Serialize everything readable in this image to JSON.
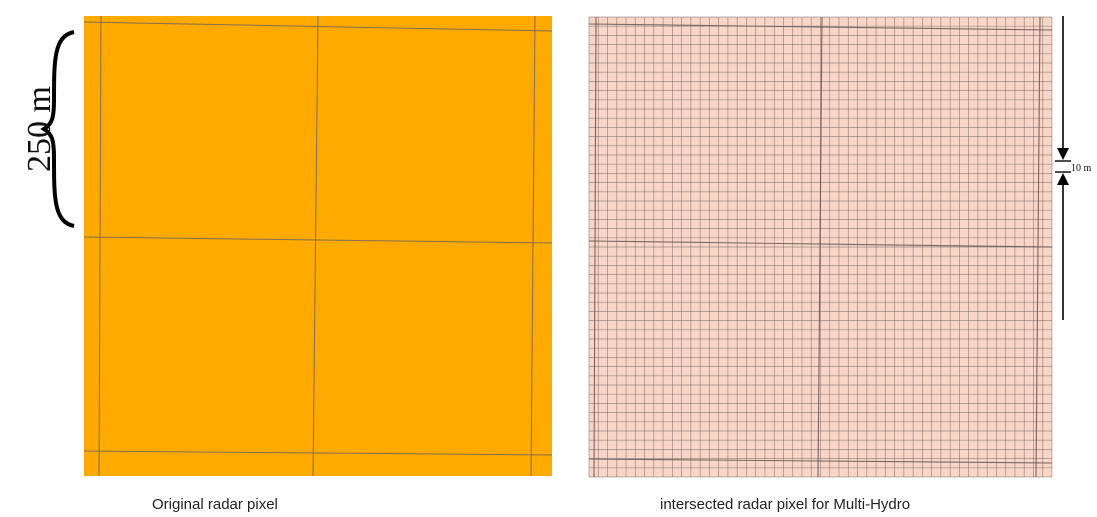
{
  "left_panel": {
    "caption": "Original radar pixel",
    "fill_color": "#FFAA00",
    "grid_color": "#5a5a6a",
    "cells_per_side": 2
  },
  "right_panel": {
    "caption": "intersected radar pixel for Multi-Hydro",
    "fill_color": "#F8D5C6",
    "grid_color": "#5a4a4a",
    "coarse_cells_per_side": 2,
    "fine_cells_per_side": 50
  },
  "scale_labels": {
    "coarse": "250 m",
    "fine": "10 m"
  }
}
